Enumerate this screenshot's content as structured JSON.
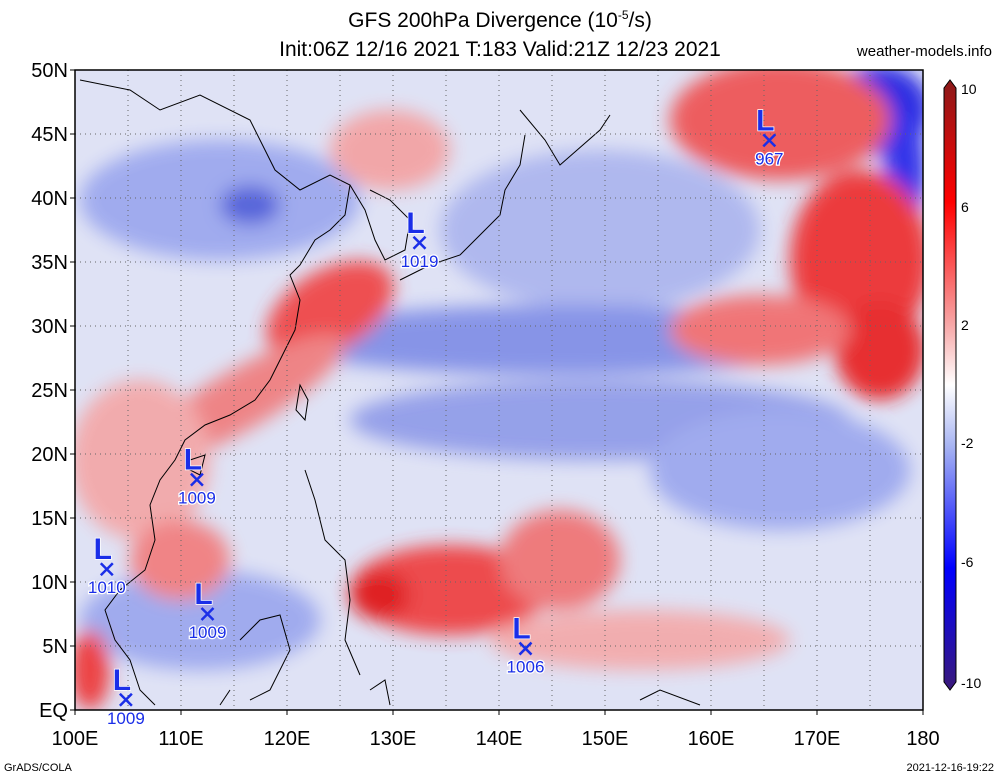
{
  "header": {
    "title_line1": "GFS 200hPa Divergence (10",
    "title_exp": "-5",
    "title_unit_end": "/s)",
    "title_line2": "Init:06Z 12/16 2021 T:183 Valid:21Z 12/23 2021",
    "site": "weather-models.info"
  },
  "footer": {
    "left": "GrADS/COLA",
    "right": "2021-12-16-19:22"
  },
  "map": {
    "lon_range": [
      100,
      180
    ],
    "lat_range": [
      0,
      50
    ],
    "lon_labels": [
      "100E",
      "110E",
      "120E",
      "130E",
      "140E",
      "150E",
      "160E",
      "170E",
      "180"
    ],
    "lat_labels": [
      "EQ",
      "5N",
      "10N",
      "15N",
      "20N",
      "25N",
      "30N",
      "35N",
      "40N",
      "45N",
      "50N"
    ],
    "grid": "dotted",
    "colors": {
      "positive": "#e8121a",
      "negative": "#1a2ee8",
      "label": "#1a2ee8"
    },
    "lows": [
      {
        "lon": 132.5,
        "lat": 36.5,
        "pressure": "1019",
        "symbol": "L"
      },
      {
        "lon": 165.5,
        "lat": 44.5,
        "pressure": "967",
        "symbol": "L"
      },
      {
        "lon": 111.5,
        "lat": 18.0,
        "pressure": "1009",
        "symbol": "L"
      },
      {
        "lon": 103.0,
        "lat": 11.0,
        "pressure": "1010",
        "symbol": "L"
      },
      {
        "lon": 112.5,
        "lat": 7.5,
        "pressure": "1009",
        "symbol": "L"
      },
      {
        "lon": 142.5,
        "lat": 4.8,
        "pressure": "1006",
        "symbol": "L"
      },
      {
        "lon": 104.8,
        "lat": 0.8,
        "pressure": "1009",
        "symbol": "L"
      }
    ]
  },
  "colorbar": {
    "labels": [
      "10",
      "6",
      "2",
      "-2",
      "-6",
      "-10"
    ]
  }
}
